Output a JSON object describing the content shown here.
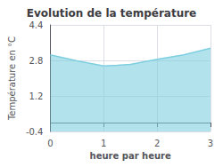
{
  "chart_data": {
    "type": "area",
    "title": "Evolution de la température",
    "xlabel": "heure par heure",
    "ylabel": "Température en °C",
    "x": [
      0,
      0.5,
      1.0,
      1.25,
      1.5,
      2.0,
      2.5,
      3.0
    ],
    "values": [
      3.05,
      2.78,
      2.55,
      2.58,
      2.62,
      2.85,
      3.05,
      3.35
    ],
    "color": "#7ecfe0",
    "xlim": [
      0,
      3
    ],
    "ylim": [
      -0.4,
      4.4
    ],
    "xticks": [
      0,
      1,
      2,
      3
    ],
    "yticks": [
      -0.4,
      1.2,
      2.8,
      4.4
    ],
    "grid": true
  }
}
